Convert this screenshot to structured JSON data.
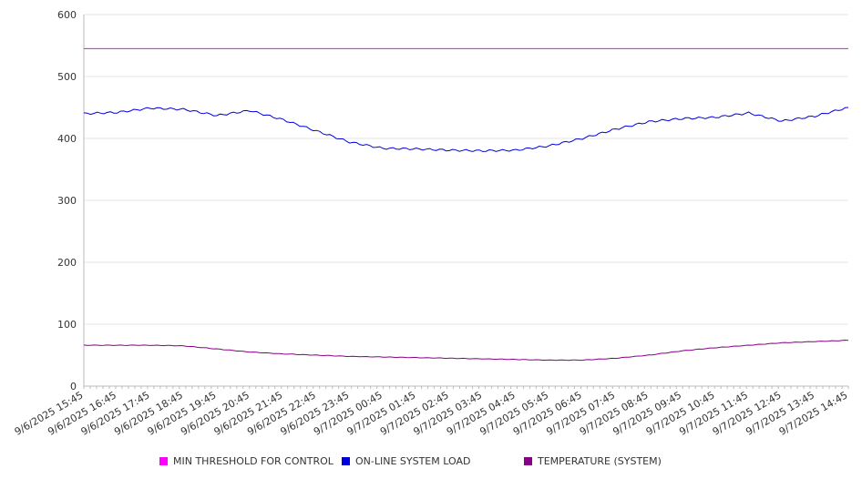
{
  "colors": {
    "threshold": "#ff00ff",
    "load": "#0000dd",
    "temperature": "#880088",
    "grid": "#e6e6e6",
    "axis": "#bbbbbb"
  },
  "chart_data": {
    "type": "line",
    "title": "",
    "xlabel": "",
    "ylabel": "",
    "ylim": [
      0,
      600
    ],
    "yticks": [
      0,
      100,
      200,
      300,
      400,
      500,
      600
    ],
    "grid": true,
    "legend_position": "bottom",
    "x_tick_labels": [
      "9/6/2025 15:45",
      "9/6/2025 16:45",
      "9/6/2025 17:45",
      "9/6/2025 18:45",
      "9/6/2025 19:45",
      "9/6/2025 20:45",
      "9/6/2025 21:45",
      "9/6/2025 22:45",
      "9/6/2025 23:45",
      "9/7/2025 00:45",
      "9/7/2025 01:45",
      "9/7/2025 02:45",
      "9/7/2025 03:45",
      "9/7/2025 04:45",
      "9/7/2025 05:45",
      "9/7/2025 06:45",
      "9/7/2025 07:45",
      "9/7/2025 08:45",
      "9/7/2025 09:45",
      "9/7/2025 10:45",
      "9/7/2025 11:45",
      "9/7/2025 12:45",
      "9/7/2025 13:45",
      "9/7/2025 14:45"
    ],
    "x": [
      "9/6/2025 15:45",
      "9/6/2025 16:45",
      "9/6/2025 17:45",
      "9/6/2025 18:45",
      "9/6/2025 19:45",
      "9/6/2025 20:45",
      "9/6/2025 21:45",
      "9/6/2025 22:45",
      "9/6/2025 23:45",
      "9/7/2025 00:45",
      "9/7/2025 01:45",
      "9/7/2025 02:45",
      "9/7/2025 03:45",
      "9/7/2025 04:45",
      "9/7/2025 05:45",
      "9/7/2025 06:45",
      "9/7/2025 07:45",
      "9/7/2025 08:45",
      "9/7/2025 09:45",
      "9/7/2025 10:45",
      "9/7/2025 11:45",
      "9/7/2025 12:45",
      "9/7/2025 13:45",
      "9/7/2025 14:45"
    ],
    "series": [
      {
        "name": "MIN THRESHOLD FOR CONTROL",
        "color": "#ff00ff",
        "values": [
          545,
          545,
          545,
          545,
          545,
          545,
          545,
          545,
          545,
          545,
          545,
          545,
          545,
          545,
          545,
          545,
          545,
          545,
          545,
          545,
          545,
          545,
          545,
          545
        ]
      },
      {
        "name": "ON-LINE SYSTEM LOAD",
        "color": "#0000dd",
        "values": [
          440,
          442,
          449,
          447,
          437,
          445,
          430,
          412,
          394,
          384,
          383,
          381,
          380,
          381,
          388,
          400,
          415,
          427,
          432,
          434,
          441,
          428,
          436,
          450
        ]
      },
      {
        "name": "TEMPERATURE (SYSTEM)",
        "color": "#880088",
        "values": [
          66,
          66,
          66,
          65,
          60,
          55,
          52,
          50,
          48,
          47,
          46,
          45,
          44,
          43,
          42,
          42,
          45,
          50,
          57,
          62,
          66,
          70,
          72,
          74
        ]
      }
    ]
  }
}
